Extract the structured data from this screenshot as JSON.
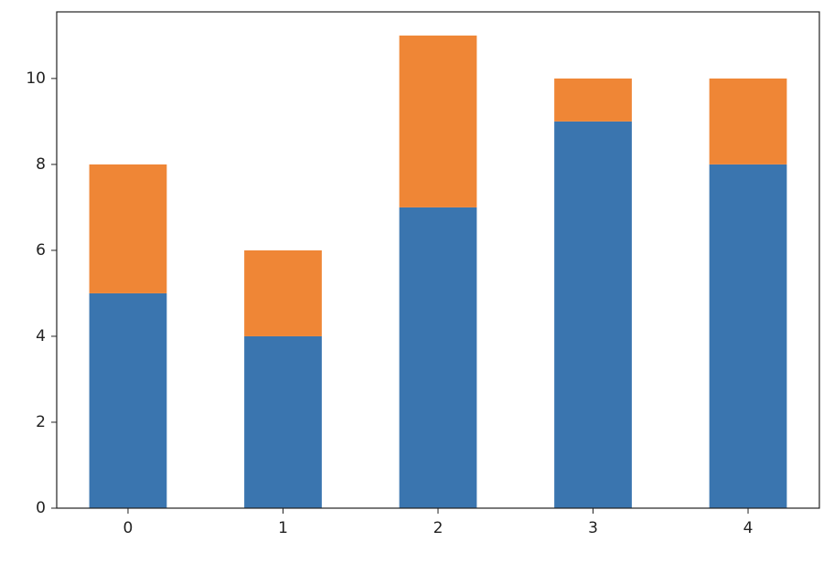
{
  "chart_data": {
    "type": "bar",
    "stacked": true,
    "x": [
      0,
      1,
      2,
      3,
      4
    ],
    "series": [
      {
        "color": "#3a75af",
        "values": [
          5,
          4,
          7,
          9,
          8
        ]
      },
      {
        "color": "#ef8636",
        "values": [
          3,
          2,
          4,
          1,
          2
        ]
      }
    ],
    "bar_width": 0.5,
    "xlim": [
      -0.46,
      4.46
    ],
    "xticks": [
      0,
      1,
      2,
      3,
      4
    ],
    "ylim": [
      0,
      11.55
    ],
    "yticks": [
      0,
      2,
      4,
      6,
      8,
      10
    ]
  }
}
